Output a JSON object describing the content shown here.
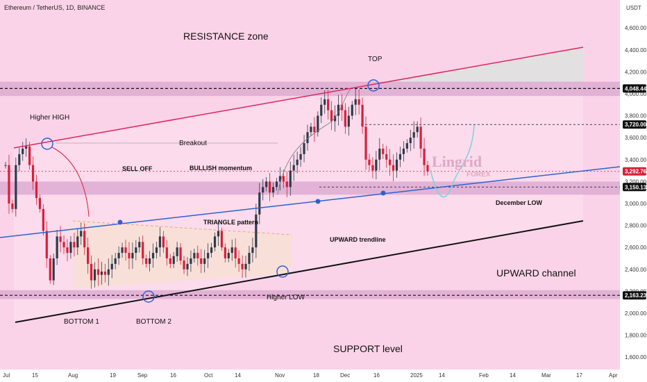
{
  "header": {
    "title": "Ethereum / TetherUS, 1D, BINANCE",
    "currency": "USDT"
  },
  "watermark": {
    "brand": "Lingrid",
    "sub": "FOREX"
  },
  "price_tags": [
    {
      "label": "4,048.44",
      "value": 4048.44,
      "style": "dark"
    },
    {
      "label": "3,720.00",
      "value": 3720.0,
      "style": "dark"
    },
    {
      "label": "3,292.76",
      "value": 3292.76,
      "style": "red"
    },
    {
      "label": "3,150.13",
      "value": 3150.13,
      "style": "dark"
    },
    {
      "label": "2,163.23",
      "value": 2163.23,
      "style": "dark"
    }
  ],
  "annotations": {
    "resistance": "RESISTANCE zone",
    "support": "SUPPORT level",
    "channel": "UPWARD channel",
    "higher_high": "Higher HIGH",
    "sell_off": "SELL OFF",
    "bullish": "BULLISH momentum",
    "breakout": "Breakout",
    "triangle": "TRIANGLE pattern",
    "top": "TOP",
    "upward_trendline": "UPWARD trendline",
    "december_low": "December LOW",
    "higher_low": "Higher LOW",
    "bottom1": "BOTTOM 1",
    "bottom2": "BOTTOM 2"
  },
  "colors": {
    "background": "#fbd3e8",
    "zone": "#d9a6cf",
    "up_candle": "#2f3a4a",
    "down_candle": "#d91e3a",
    "resistance_line": "#e0245e",
    "trendline": "#2e5fd6",
    "channel_line": "#111111",
    "projection": "#79d3dd"
  },
  "chart_data": {
    "type": "candlestick",
    "title": "Ethereum / TetherUS, 1D, BINANCE",
    "y_unit": "USDT",
    "ylim": [
      1500,
      4800
    ],
    "y_ticks": [
      1600,
      1800,
      2000,
      2200,
      2400,
      2600,
      2800,
      3000,
      3200,
      3400,
      3600,
      3800,
      4000,
      4200,
      4400,
      4600
    ],
    "y_tick_labels": [
      "1,600.00",
      "1,800.00",
      "2,000.00",
      "2,200.00",
      "2,400.00",
      "2,600.00",
      "2,800.00",
      "3,000.00",
      "3,200.00",
      "3,400.00",
      "3,600.00",
      "3,800.00",
      "4,000.00",
      "4,200.00",
      "4,400.00",
      "4,600.00"
    ],
    "x_tick_labels": [
      "Jul",
      "15",
      "Aug",
      "19",
      "Sep",
      "16",
      "Oct",
      "14",
      "Nov",
      "18",
      "Dec",
      "16",
      "2025",
      "14",
      "Feb",
      "14",
      "Mar",
      "17",
      "Apr"
    ],
    "zones": [
      {
        "name": "resistance",
        "from": 3980,
        "to": 4110
      },
      {
        "name": "mid_support",
        "from": 3080,
        "to": 3200
      },
      {
        "name": "support",
        "from": 2130,
        "to": 2210
      }
    ],
    "close_path_points": [
      3350,
      3000,
      2950,
      3350,
      3450,
      3500,
      3520,
      3350,
      3200,
      3050,
      2950,
      2750,
      2500,
      2300,
      2500,
      2700,
      2650,
      2600,
      2550,
      2650,
      2600,
      2700,
      2750,
      2600,
      2450,
      2300,
      2400,
      2350,
      2380,
      2350,
      2400,
      2450,
      2500,
      2550,
      2600,
      2550,
      2500,
      2550,
      2600,
      2650,
      2500,
      2450,
      2500,
      2550,
      2600,
      2700,
      2600,
      2500,
      2450,
      2520,
      2600,
      2480,
      2400,
      2450,
      2500,
      2550,
      2500,
      2450,
      2500,
      2550,
      2600,
      2700,
      2750,
      2600,
      2500,
      2550,
      2600,
      2500,
      2450,
      2400,
      2450,
      2550,
      2600,
      2900,
      3100,
      3150,
      3200,
      3100,
      3150,
      3200,
      3250,
      3200,
      3150,
      3300,
      3350,
      3400,
      3450,
      3550,
      3650,
      3700,
      3650,
      3800,
      3900,
      3950,
      3850,
      3750,
      3800,
      3900,
      3850,
      3700,
      3800,
      3900,
      3950,
      3900,
      3700,
      3400,
      3350,
      3300,
      3400,
      3500,
      3450,
      3400,
      3350,
      3300,
      3400,
      3450,
      3500,
      3550,
      3600,
      3650,
      3700,
      3500,
      3350,
      3292
    ]
  }
}
